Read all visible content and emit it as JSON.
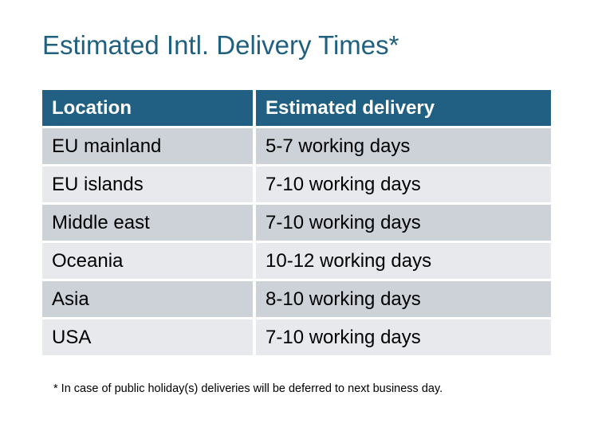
{
  "title": "Estimated Intl. Delivery Times*",
  "table": {
    "headers": [
      "Location",
      "Estimated delivery"
    ],
    "rows": [
      [
        "EU mainland",
        "5-7 working days"
      ],
      [
        "EU islands",
        "7-10 working days"
      ],
      [
        "Middle east",
        "7-10 working days"
      ],
      [
        "Oceania",
        "10-12 working days"
      ],
      [
        "Asia",
        "8-10 working days"
      ],
      [
        "USA",
        "7-10 working days"
      ]
    ]
  },
  "footnote": "* In case of public holiday(s) deliveries will be deferred to next business day.",
  "colors": {
    "header": "#216082",
    "title": "#1f5f80",
    "row_dark": "#cdd2d9",
    "row_light": "#e7e9ec"
  }
}
